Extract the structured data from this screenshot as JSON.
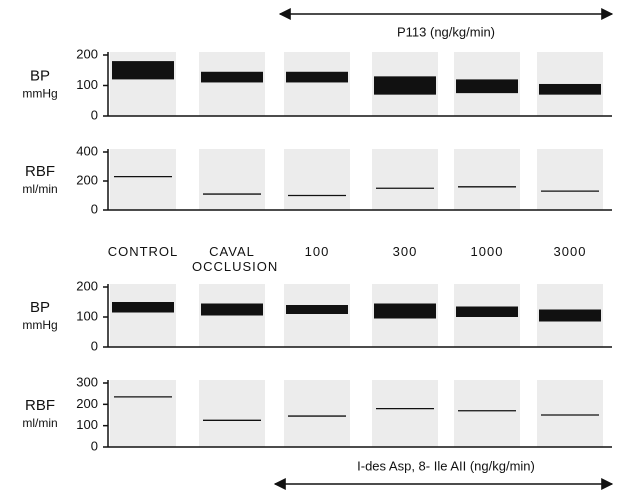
{
  "chart_data": [
    {
      "type": "range",
      "ylabel": "BP",
      "yunit": "mmHg",
      "annotation": "P113 (ng/kg/min)",
      "categories": [
        null,
        null,
        null,
        null,
        null,
        null
      ],
      "low": [
        120,
        110,
        110,
        70,
        75,
        70
      ],
      "high": [
        180,
        145,
        145,
        130,
        120,
        105
      ],
      "color": "#111",
      "ylim": [
        0,
        200
      ],
      "yticks": [
        0,
        100,
        200
      ]
    },
    {
      "type": "level",
      "ylabel": "RBF",
      "yunit": "ml/min",
      "categories": [
        null,
        null,
        null,
        null,
        null,
        null
      ],
      "values": [
        230,
        110,
        100,
        150,
        160,
        130
      ],
      "color": "#111",
      "ylim": [
        0,
        400
      ],
      "yticks": [
        0,
        200,
        400
      ]
    },
    {
      "type": "range",
      "ylabel": "BP",
      "yunit": "mmHg",
      "categories": [
        "CONTROL",
        "CAVAL OCCLUSION",
        "100",
        "300",
        "1000",
        "3000"
      ],
      "low": [
        115,
        105,
        110,
        95,
        100,
        85
      ],
      "high": [
        150,
        145,
        140,
        145,
        135,
        125
      ],
      "color": "#111",
      "ylim": [
        0,
        200
      ],
      "yticks": [
        0,
        100,
        200
      ]
    },
    {
      "type": "level",
      "ylabel": "RBF",
      "yunit": "ml/min",
      "annotation": "I-des Asp, 8- Ile AII (ng/kg/min)",
      "categories": [
        null,
        null,
        null,
        null,
        null,
        null
      ],
      "values": [
        235,
        125,
        145,
        180,
        170,
        150
      ],
      "color": "#111",
      "ylim": [
        0,
        300
      ],
      "yticks": [
        0,
        100,
        200,
        300
      ]
    }
  ]
}
